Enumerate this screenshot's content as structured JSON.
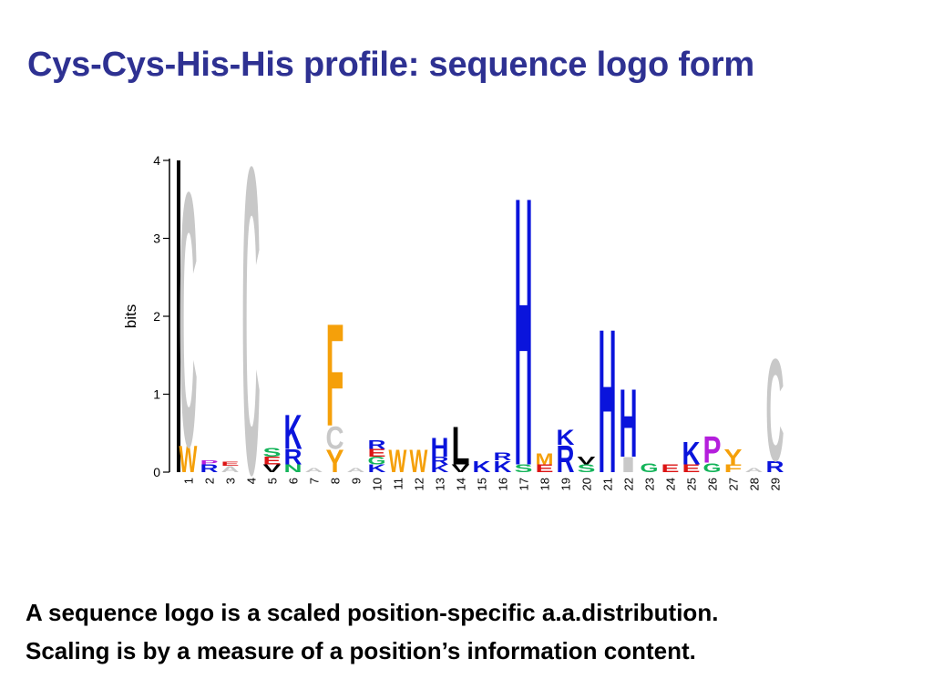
{
  "slide": {
    "title": "Cys-Cys-His-His profile: sequence logo form",
    "caption_line1": "A sequence logo is a scaled position-specific a.a.distribution.",
    "caption_line2": "Scaling is by a measure of a position’s information content."
  },
  "colors": {
    "title": "#2e3192",
    "caption": "#000000",
    "hydrophobic_gray": "#c8c8c8",
    "basic_blue": "#0a14dc",
    "aromatic_orange": "#f5a00a",
    "proline_purple": "#b41edc",
    "acidic_red": "#dc1414",
    "polar_green": "#14b45a",
    "black": "#000000"
  },
  "chart_data": {
    "type": "sequence_logo",
    "title": "",
    "xlabel": "",
    "ylabel": "bits",
    "ylim": [
      0,
      4
    ],
    "yticks": [
      "0",
      "1",
      "2",
      "3",
      "4"
    ],
    "positions": [
      "1",
      "2",
      "3",
      "4",
      "5",
      "6",
      "7",
      "8",
      "9",
      "10",
      "11",
      "12",
      "13",
      "14",
      "15",
      "16",
      "17",
      "18",
      "19",
      "20",
      "21",
      "22",
      "23",
      "24",
      "25",
      "26",
      "27",
      "28",
      "29"
    ],
    "columns": [
      {
        "position": "1",
        "letters": [
          [
            "W",
            0.35
          ],
          [
            "C",
            3.35
          ]
        ],
        "bar": 4.0
      },
      {
        "position": "2",
        "letters": [
          [
            "R",
            0.1
          ],
          [
            "P",
            0.05
          ]
        ]
      },
      {
        "position": "3",
        "letters": [
          [
            "A",
            0.08
          ],
          [
            "E",
            0.05
          ]
        ]
      },
      {
        "position": "4",
        "letters": [
          [
            "C",
            4.05
          ]
        ]
      },
      {
        "position": "5",
        "letters": [
          [
            "V",
            0.1
          ],
          [
            "E",
            0.1
          ],
          [
            "S",
            0.12
          ]
        ]
      },
      {
        "position": "6",
        "letters": [
          [
            "N",
            0.1
          ],
          [
            "R",
            0.2
          ],
          [
            "K",
            0.45
          ]
        ]
      },
      {
        "position": "7",
        "letters": [
          [
            "A",
            0.05
          ]
        ]
      },
      {
        "position": "8",
        "letters": [
          [
            "Y",
            0.3
          ],
          [
            "C",
            0.3
          ],
          [
            "F",
            1.35
          ]
        ]
      },
      {
        "position": "9",
        "letters": [
          [
            "A",
            0.05
          ]
        ]
      },
      {
        "position": "10",
        "letters": [
          [
            "K",
            0.1
          ],
          [
            "G",
            0.1
          ],
          [
            "E",
            0.1
          ],
          [
            "R",
            0.12
          ]
        ]
      },
      {
        "position": "11",
        "letters": [
          [
            "W",
            0.3
          ]
        ]
      },
      {
        "position": "12",
        "letters": [
          [
            "W",
            0.3
          ]
        ]
      },
      {
        "position": "13",
        "letters": [
          [
            "K",
            0.1
          ],
          [
            "R",
            0.1
          ],
          [
            "H",
            0.25
          ]
        ]
      },
      {
        "position": "14",
        "letters": [
          [
            "V",
            0.1
          ],
          [
            "L",
            0.5
          ]
        ]
      },
      {
        "position": "15",
        "letters": [
          [
            "K",
            0.15
          ]
        ]
      },
      {
        "position": "16",
        "letters": [
          [
            "K",
            0.15
          ],
          [
            "R",
            0.1
          ]
        ]
      },
      {
        "position": "17",
        "letters": [
          [
            "S",
            0.1
          ],
          [
            "H",
            3.55
          ]
        ]
      },
      {
        "position": "18",
        "letters": [
          [
            "E",
            0.1
          ],
          [
            "M",
            0.15
          ]
        ]
      },
      {
        "position": "19",
        "letters": [
          [
            "R",
            0.35
          ],
          [
            "K",
            0.2
          ]
        ]
      },
      {
        "position": "20",
        "letters": [
          [
            "S",
            0.1
          ],
          [
            "V",
            0.1
          ]
        ]
      },
      {
        "position": "21",
        "letters": [
          [
            "H",
            1.9
          ]
        ]
      },
      {
        "position": "22",
        "letters": [
          [
            "I",
            0.2
          ],
          [
            "H",
            0.9
          ]
        ]
      },
      {
        "position": "23",
        "letters": [
          [
            "G",
            0.12
          ]
        ]
      },
      {
        "position": "24",
        "letters": [
          [
            "E",
            0.1
          ]
        ]
      },
      {
        "position": "25",
        "letters": [
          [
            "E",
            0.1
          ],
          [
            "K",
            0.3
          ]
        ]
      },
      {
        "position": "26",
        "letters": [
          [
            "G",
            0.12
          ],
          [
            "P",
            0.35
          ]
        ]
      },
      {
        "position": "27",
        "letters": [
          [
            "F",
            0.1
          ],
          [
            "Y",
            0.2
          ]
        ]
      },
      {
        "position": "28",
        "letters": [
          [
            "A",
            0.05
          ]
        ]
      },
      {
        "position": "29",
        "letters": [
          [
            "R",
            0.15
          ],
          [
            "C",
            1.35
          ]
        ]
      }
    ]
  }
}
